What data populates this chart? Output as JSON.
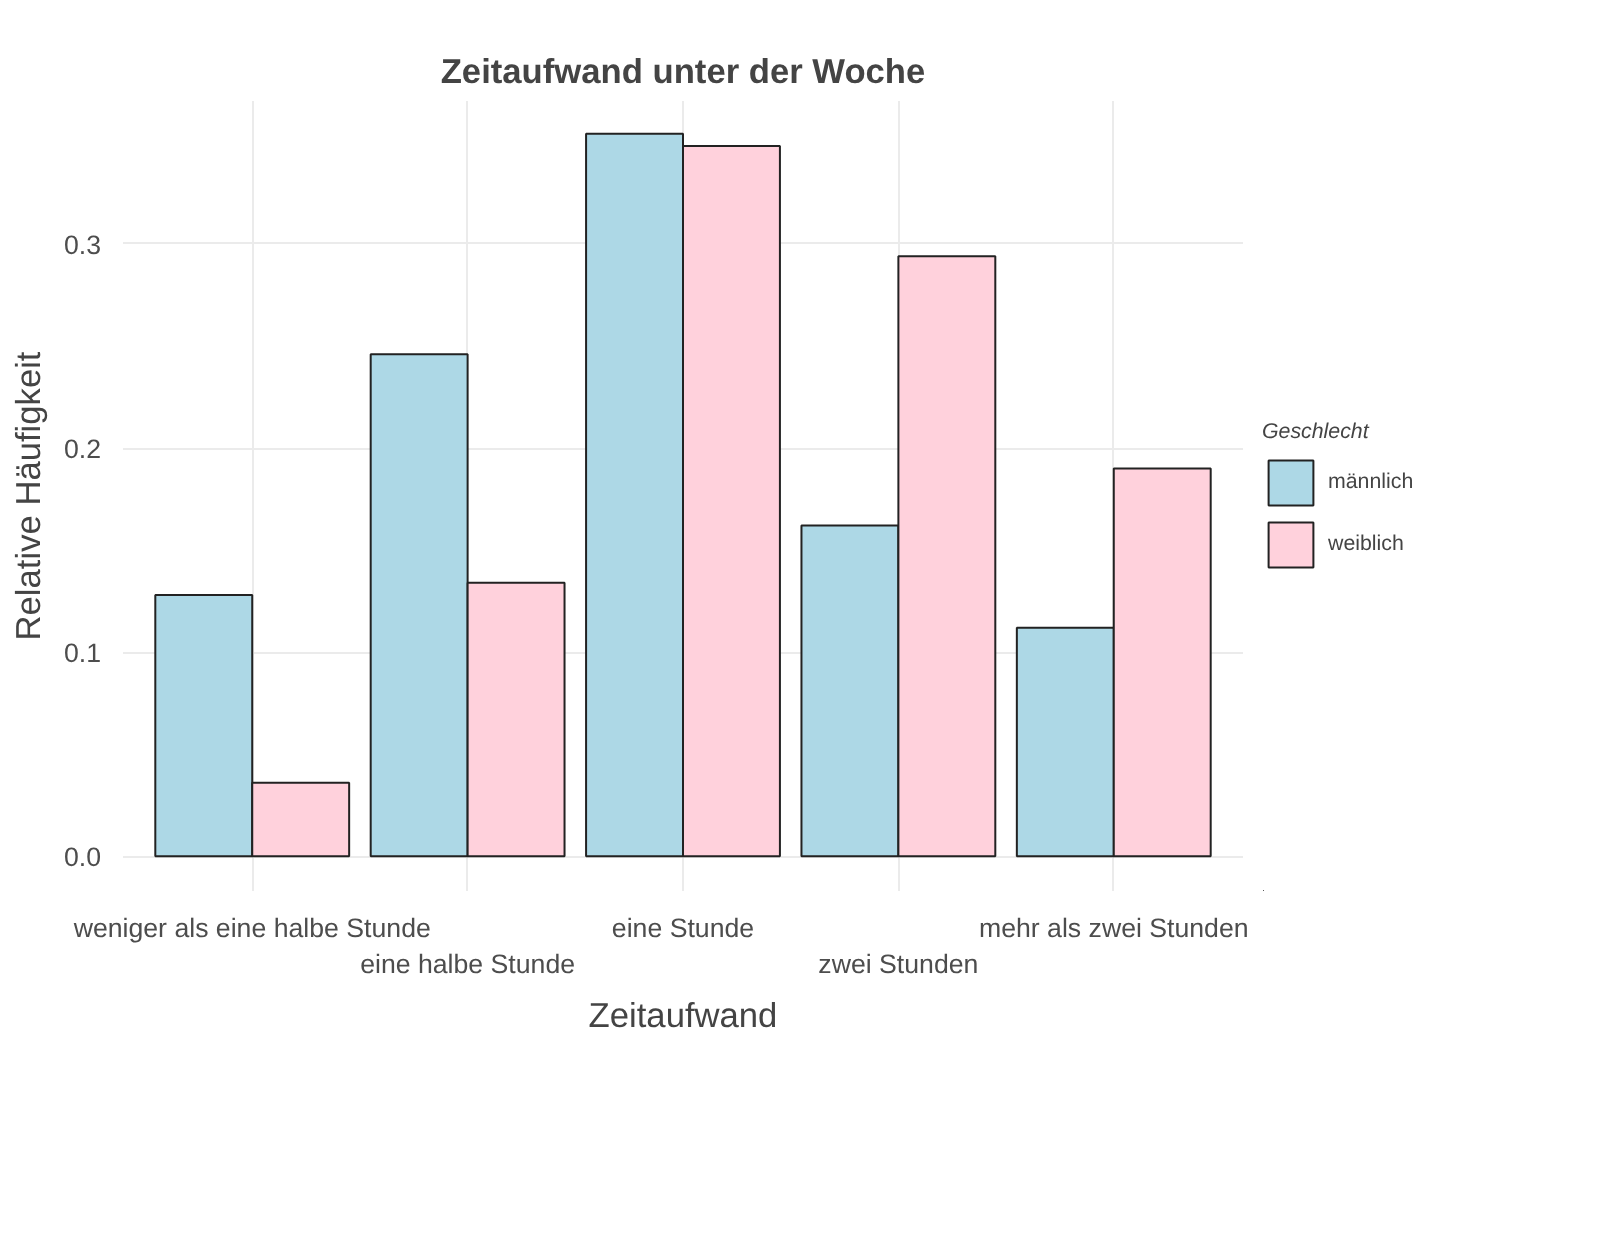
{
  "chart_data": {
    "type": "bar",
    "title": "Zeitaufwand unter der Woche",
    "xlabel": "Zeitaufwand",
    "ylabel": "Relative Häufigkeit",
    "legend_title": "Geschlecht",
    "categories": [
      "weniger als eine halbe Stunde",
      "eine halbe Stunde",
      "eine Stunde",
      "zwei Stunden",
      "mehr als zwei Stunden"
    ],
    "series": [
      {
        "name": "männlich",
        "color": "#add8e6",
        "values": [
          0.128,
          0.246,
          0.354,
          0.162,
          0.112
        ]
      },
      {
        "name": "weiblich",
        "color": "#ffd1dc",
        "values": [
          0.036,
          0.134,
          0.348,
          0.294,
          0.19
        ]
      }
    ],
    "ylim": [
      -0.017,
      0.37
    ],
    "yticks": [
      {
        "value": 0,
        "label": "0.0"
      },
      0.1,
      0.2,
      0.3
    ],
    "grid": true,
    "legend": "right"
  }
}
